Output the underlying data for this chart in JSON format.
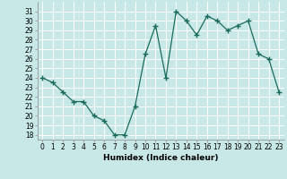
{
  "x": [
    0,
    1,
    2,
    3,
    4,
    5,
    6,
    7,
    8,
    9,
    10,
    11,
    12,
    13,
    14,
    15,
    16,
    17,
    18,
    19,
    20,
    21,
    22,
    23
  ],
  "y": [
    24,
    23.5,
    22.5,
    21.5,
    21.5,
    20,
    19.5,
    18,
    18,
    21,
    26.5,
    29.5,
    24,
    31,
    30,
    28.5,
    30.5,
    30,
    29,
    29.5,
    30,
    26.5,
    26,
    22.5
  ],
  "line_color": "#1a6b5a",
  "marker": "+",
  "marker_size": 4,
  "marker_color": "#1a6b5a",
  "bg_color": "#c8e8e8",
  "grid_color": "#ffffff",
  "xlabel": "Humidex (Indice chaleur)",
  "xlim": [
    -0.5,
    23.5
  ],
  "ylim": [
    17.5,
    32
  ],
  "yticks": [
    18,
    19,
    20,
    21,
    22,
    23,
    24,
    25,
    26,
    27,
    28,
    29,
    30,
    31
  ],
  "xticks": [
    0,
    1,
    2,
    3,
    4,
    5,
    6,
    7,
    8,
    9,
    10,
    11,
    12,
    13,
    14,
    15,
    16,
    17,
    18,
    19,
    20,
    21,
    22,
    23
  ],
  "tick_fontsize": 5.5,
  "xlabel_fontsize": 6.5,
  "linewidth": 0.9
}
